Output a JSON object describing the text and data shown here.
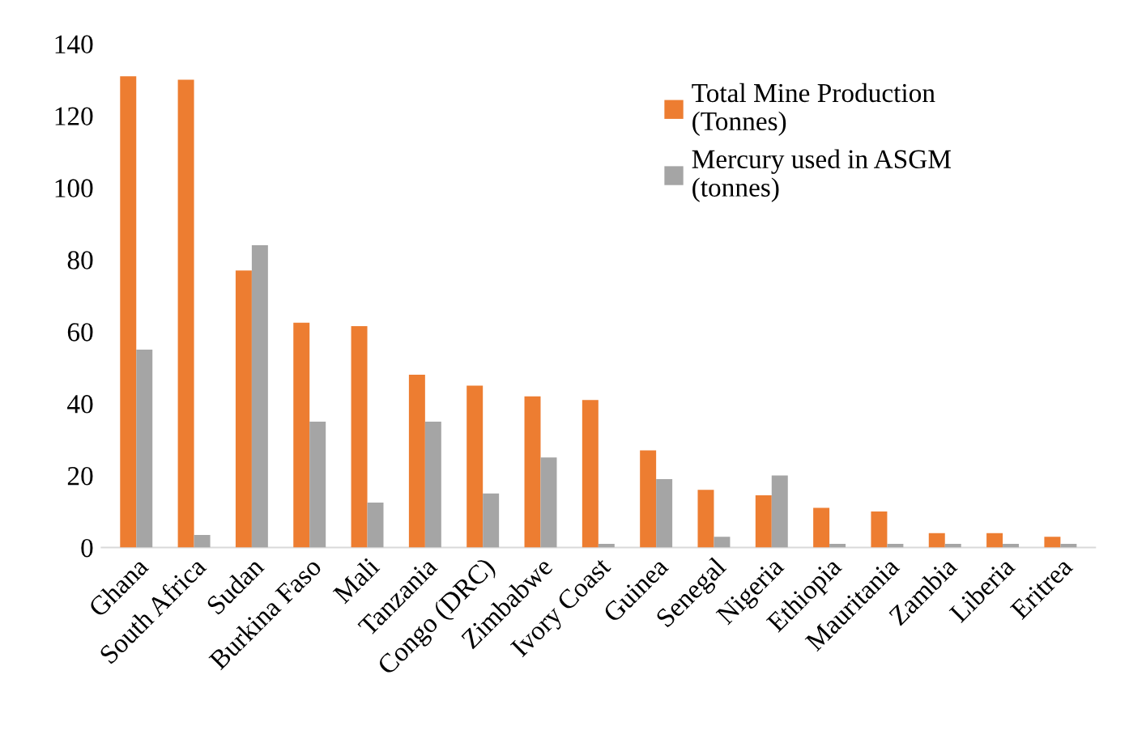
{
  "chart_data": {
    "type": "bar",
    "categories": [
      "Ghana",
      "South Africa",
      "Sudan",
      "Burkina Faso",
      "Mali",
      "Tanzania",
      "Congo (DRC)",
      "Zimbabwe",
      "Ivory Coast",
      "Guinea",
      "Senegal",
      "Nigeria",
      "Ethiopia",
      "Mauritania",
      "Zambia",
      "Liberia",
      "Eritrea"
    ],
    "series": [
      {
        "name": "Total Mine Production\n(Tonnes)",
        "color": "#ed7d31",
        "values": [
          131,
          130,
          77,
          62.5,
          61.5,
          48,
          45,
          42,
          41,
          27,
          16,
          14.5,
          11,
          10,
          4,
          4,
          3
        ]
      },
      {
        "name": "Mercury used in ASGM\n(tonnes)",
        "color": "#a5a5a5",
        "values": [
          55,
          3.5,
          84,
          35,
          12.5,
          35,
          15,
          25,
          1,
          19,
          3,
          20,
          1,
          1,
          1,
          1,
          1
        ]
      }
    ],
    "ylim": [
      0,
      140
    ],
    "yticks": [
      0,
      20,
      40,
      60,
      80,
      100,
      120,
      140
    ],
    "grid": false,
    "legend": "top right"
  }
}
